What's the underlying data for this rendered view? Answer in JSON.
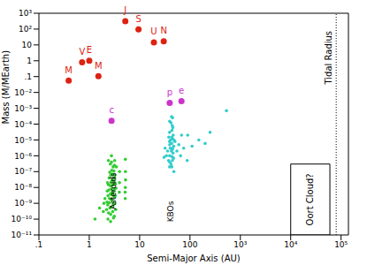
{
  "chart_data": {
    "type": "scatter",
    "log": true,
    "grid": false,
    "xlabel": "Semi-Major Axis (AU)",
    "ylabel": "Mass (M/MEarth)",
    "xlim": [
      0.1,
      140000
    ],
    "ylim": [
      1e-11,
      1000
    ],
    "xticks": [
      {
        "value": 0.1,
        "label": ".1"
      },
      1,
      10,
      100,
      {
        "value": 1000,
        "label": "10³"
      },
      {
        "value": 10000,
        "label": "10⁴"
      },
      {
        "value": 100000,
        "label": "10⁵"
      }
    ],
    "yticks": [
      {
        "value": 1000,
        "label": "10³"
      },
      {
        "value": 100,
        "label": "10²"
      },
      10,
      1,
      {
        "value": 0.1,
        "label": ".1"
      },
      {
        "value": 0.01,
        "label": "10⁻²"
      },
      {
        "value": 0.001,
        "label": "10⁻³"
      },
      {
        "value": 0.0001,
        "label": "10⁻⁴"
      },
      {
        "value": 1e-05,
        "label": "10⁻⁵"
      },
      {
        "value": 1e-06,
        "label": "10⁻⁶"
      },
      {
        "value": 1e-07,
        "label": "10⁻⁷"
      },
      {
        "value": 1e-08,
        "label": "10⁻⁸"
      },
      {
        "value": 1e-09,
        "label": "10⁻⁹"
      },
      {
        "value": 1e-10,
        "label": "10⁻¹⁰"
      },
      {
        "value": 1e-11,
        "label": "10⁻¹¹"
      }
    ],
    "series": [
      {
        "color": "#dd2211",
        "marker": "circle",
        "x": [
          0.39,
          0.72,
          1.0,
          1.52,
          5.2,
          9.5,
          19.2,
          30.1
        ],
        "values": [
          0.055,
          0.815,
          1.0,
          0.107,
          318,
          95,
          14.5,
          17.1
        ],
        "labels": [
          "M",
          "V",
          "E",
          "M",
          "J",
          "S",
          "U",
          "N"
        ]
      },
      {
        "color": "#cc33cc",
        "marker": "circle",
        "x": [
          2.77,
          39.5,
          67.7
        ],
        "values": [
          0.00016,
          0.0022,
          0.0028
        ],
        "labels": [
          "c",
          "p",
          "e"
        ]
      },
      {
        "name": "Asteroids",
        "color": "#33cc33",
        "marker": "dot",
        "x": [
          2.21,
          2.25,
          2.28,
          2.3,
          2.33,
          2.36,
          2.39,
          2.4,
          2.42,
          2.45,
          2.48,
          2.5,
          2.53,
          2.55,
          2.57,
          2.6,
          2.62,
          2.64,
          2.66,
          2.68,
          2.7,
          2.72,
          2.74,
          2.76,
          2.78,
          2.8,
          2.82,
          2.84,
          2.86,
          2.88,
          2.9,
          2.92,
          2.94,
          2.96,
          2.98,
          3.0,
          3.02,
          3.05,
          3.08,
          3.1,
          3.12,
          3.14,
          3.16,
          3.18,
          3.2,
          3.22,
          3.25,
          3.28,
          3.3,
          3.35,
          3.4,
          3.45,
          2.35,
          2.65,
          3.03,
          2.77,
          3.15,
          1.9,
          1.95,
          1.6,
          2.05,
          3.95,
          3.98,
          4.0,
          5.2,
          5.15,
          5.25,
          5.22,
          5.18,
          5.21,
          1.3
        ],
        "values": [
          4e-10,
          1.2e-09,
          6e-09,
          2e-08,
          8e-10,
          3e-09,
          1.5e-08,
          5e-07,
          2.5e-10,
          7e-09,
          4e-08,
          1.1e-09,
          2e-09,
          9e-08,
          5e-10,
          1.3e-08,
          3e-07,
          4e-09,
          2e-10,
          6e-08,
          1.8e-09,
          2.2e-08,
          8e-09,
          1e-06,
          3.5e-09,
          1.2e-07,
          6e-10,
          2.8e-08,
          1.5e-09,
          5e-09,
          7e-08,
          3e-10,
          1.4e-08,
          4.5e-09,
          2e-07,
          9e-10,
          3e-08,
          6e-09,
          1.1e-07,
          2.5e-09,
          4e-08,
          1.5e-10,
          8e-09,
          2e-08,
          5e-07,
          1e-09,
          6e-08,
          3e-09,
          1.6e-08,
          4e-10,
          9e-09,
          2e-07,
          1e-10,
          7e-11,
          1.2e-10,
          4e-07,
          2.5e-07,
          3e-10,
          1e-09,
          5e-10,
          2e-09,
          5e-09,
          2e-08,
          1e-07,
          1e-08,
          5e-09,
          3e-08,
          1e-07,
          2e-09,
          6e-07,
          1e-10
        ]
      },
      {
        "name": "KBOs",
        "color": "#33cccc",
        "marker": "dot",
        "x": [
          39.4,
          39.5,
          39.6,
          39.4,
          39.5,
          39.6,
          39.4,
          42.1,
          42.8,
          43.2,
          43.5,
          43.8,
          44.1,
          44.3,
          44.5,
          44.7,
          45,
          45.3,
          45.6,
          46,
          46.4,
          47,
          47.5,
          48,
          36,
          37.5,
          34,
          32,
          30.5,
          55,
          60,
          65,
          75,
          90,
          110,
          150,
          200,
          250,
          530,
          42,
          43,
          45,
          41,
          40.5,
          38,
          50,
          47.8,
          43.6,
          88,
          68
        ],
        "values": [
          2e-07,
          1e-06,
          5e-06,
          3e-05,
          0.00015,
          4e-07,
          8e-06,
          3e-07,
          2e-06,
          6e-06,
          1.5e-05,
          4e-05,
          9e-07,
          2.5e-06,
          8e-05,
          5e-07,
          1.2e-05,
          3e-06,
          6e-05,
          1.5e-06,
          2e-05,
          7e-07,
          4e-06,
          1e-05,
          2e-06,
          5e-07,
          1e-06,
          3e-06,
          8e-07,
          2e-06,
          5e-06,
          1e-06,
          3e-06,
          2e-05,
          4e-06,
          1e-05,
          6e-06,
          3e-05,
          0.0007,
          0.00012,
          0.0003,
          0.00025,
          1e-05,
          3e-06,
          1.5e-05,
          8e-06,
          1e-07,
          2e-07,
          5e-07,
          2e-05
        ]
      }
    ],
    "regions": [
      {
        "label": "Oort Cloud?",
        "x": [
          10000,
          60000
        ],
        "y": [
          1e-11,
          3e-07
        ]
      }
    ],
    "lines": [
      {
        "label": "Tidal Radius",
        "x": 80000,
        "line_style": "dotted"
      }
    ]
  }
}
